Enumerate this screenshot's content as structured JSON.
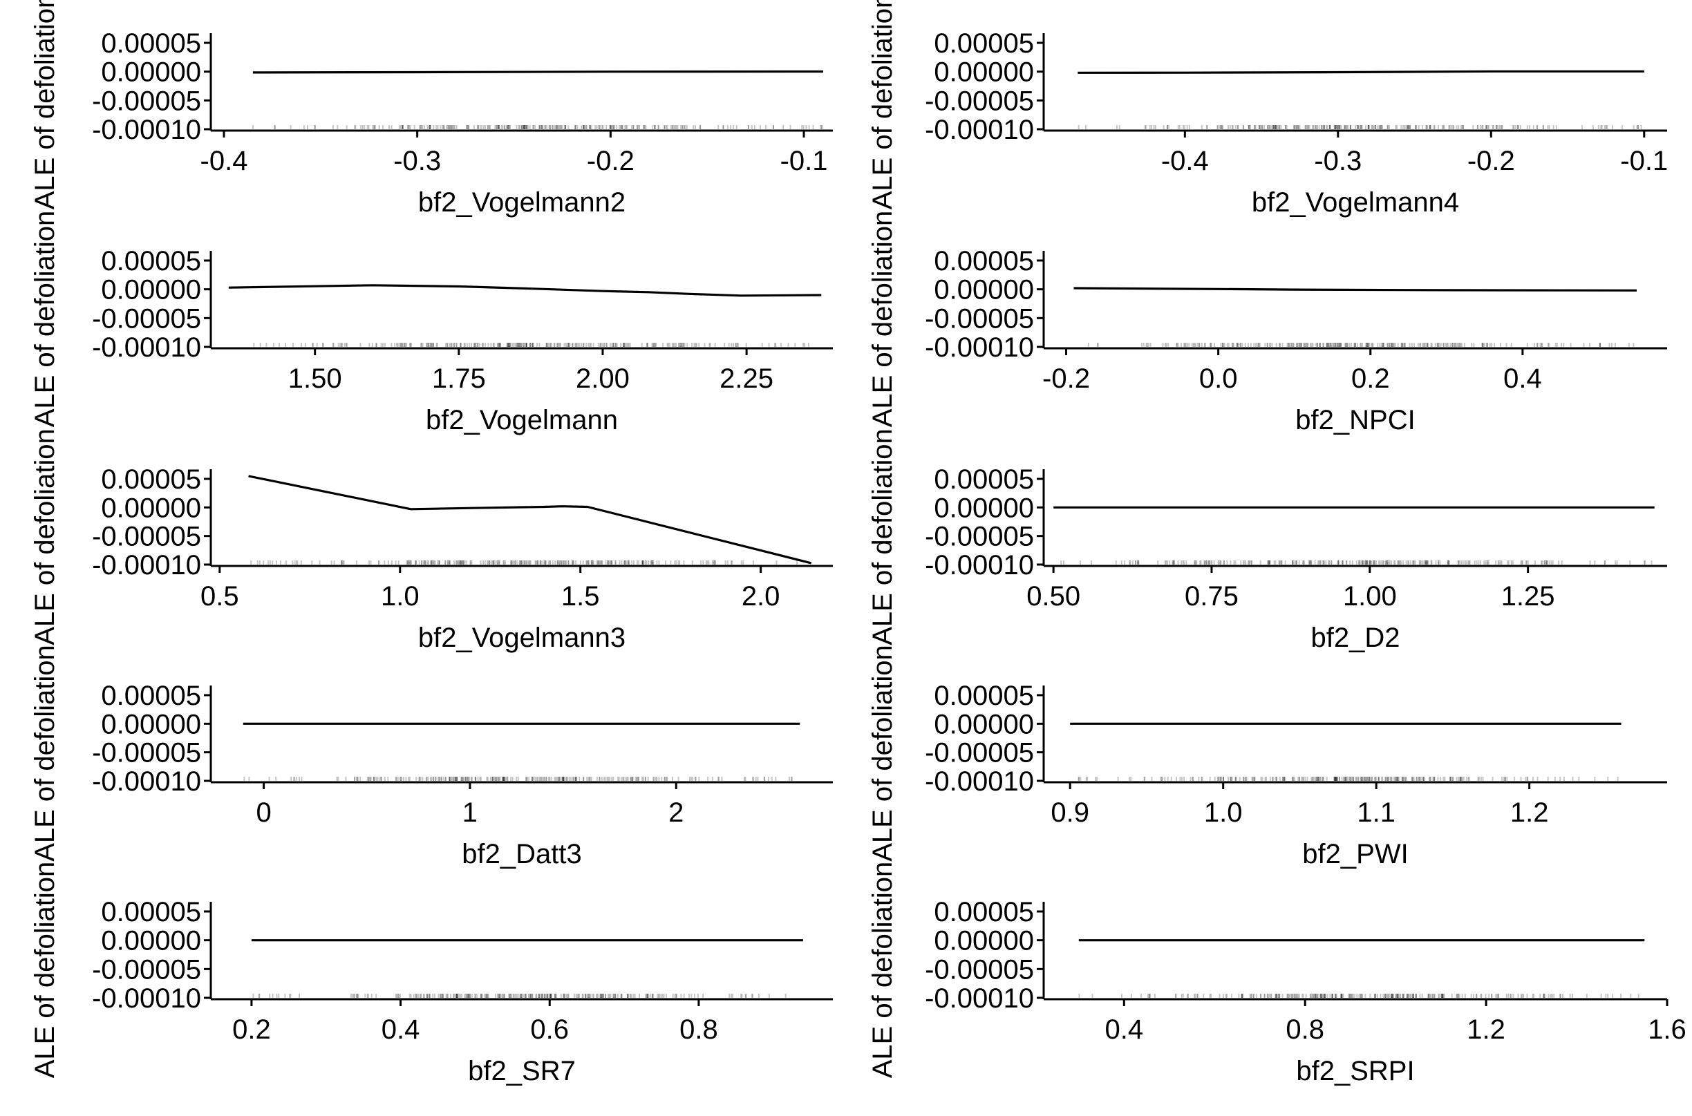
{
  "chart_data": [
    {
      "type": "line",
      "xlabel": "bf2_Vogelmann2",
      "ylabel": "ALE of defoliation",
      "xticks": [
        -0.4,
        -0.3,
        -0.2,
        -0.1
      ],
      "xtick_labels": [
        "-0.4",
        "-0.3",
        "-0.2",
        "-0.1"
      ],
      "xlim": [
        -0.405,
        -0.085
      ],
      "yticks": [
        5e-05,
        0.0,
        -5e-05,
        -0.0001
      ],
      "ytick_labels": [
        "0.00005",
        "0.00000",
        "-0.00005",
        "-0.00010"
      ],
      "ylim": [
        -0.0001,
        5e-05
      ],
      "rug_range": [
        -0.39,
        -0.09
      ],
      "series": [
        {
          "x": [
            -0.385,
            -0.3,
            -0.2,
            -0.09
          ],
          "y": [
            -1.5e-06,
            -1e-06,
            0.0,
            2e-07
          ]
        }
      ]
    },
    {
      "type": "line",
      "xlabel": "bf2_Vogelmann4",
      "ylabel": "ALE of defoliation",
      "xticks": [
        -0.4,
        -0.3,
        -0.2,
        -0.1
      ],
      "xtick_labels": [
        "-0.4",
        "-0.3",
        "-0.2",
        "-0.1"
      ],
      "xlim": [
        -0.49,
        -0.085
      ],
      "yticks": [
        5e-05,
        0.0,
        -5e-05,
        -0.0001
      ],
      "ytick_labels": [
        "0.00005",
        "0.00000",
        "-0.00005",
        "-0.00010"
      ],
      "ylim": [
        -0.0001,
        5e-05
      ],
      "rug_range": [
        -0.47,
        -0.1
      ],
      "series": [
        {
          "x": [
            -0.47,
            -0.4,
            -0.3,
            -0.2,
            -0.1
          ],
          "y": [
            -2e-06,
            -1.8e-06,
            -1e-06,
            5e-07,
            5e-07
          ]
        }
      ]
    },
    {
      "type": "line",
      "xlabel": "bf2_Vogelmann",
      "ylabel": "ALE of defoliation",
      "xticks": [
        1.5,
        1.75,
        2.0,
        2.25
      ],
      "xtick_labels": [
        "1.50",
        "1.75",
        "2.00",
        "2.25"
      ],
      "xlim": [
        1.325,
        2.4
      ],
      "yticks": [
        5e-05,
        0.0,
        -5e-05,
        -0.0001
      ],
      "ytick_labels": [
        "0.00005",
        "0.00000",
        "-0.00005",
        "-0.00010"
      ],
      "ylim": [
        -0.0001,
        5e-05
      ],
      "rug_range": [
        1.35,
        2.38
      ],
      "series": [
        {
          "x": [
            1.35,
            1.6,
            1.75,
            1.88,
            2.0,
            2.08,
            2.15,
            2.24,
            2.38
          ],
          "y": [
            3e-06,
            7e-06,
            5e-06,
            1e-06,
            -3e-06,
            -5e-06,
            -8e-06,
            -1.1e-05,
            -1e-05
          ]
        }
      ]
    },
    {
      "type": "line",
      "xlabel": "bf2_NPCI",
      "ylabel": "ALE of defoliation",
      "xticks": [
        -0.2,
        0.0,
        0.2,
        0.4
      ],
      "xtick_labels": [
        "-0.2",
        "0.0",
        "0.2",
        "0.4"
      ],
      "xlim": [
        -0.225,
        0.59
      ],
      "yticks": [
        5e-05,
        0.0,
        -5e-05,
        -0.0001
      ],
      "ytick_labels": [
        "0.00005",
        "0.00000",
        "-0.00005",
        "-0.00010"
      ],
      "ylim": [
        -0.0001,
        5e-05
      ],
      "rug_range": [
        -0.19,
        0.55
      ],
      "series": [
        {
          "x": [
            -0.19,
            0.0,
            0.1,
            0.3,
            0.55
          ],
          "y": [
            2e-06,
            5e-07,
            -5e-07,
            -1.5e-06,
            -2e-06
          ]
        }
      ]
    },
    {
      "type": "line",
      "xlabel": "bf2_Vogelmann3",
      "ylabel": "ALE of defoliation",
      "xticks": [
        0.5,
        1.0,
        1.5,
        2.0
      ],
      "xtick_labels": [
        "0.5",
        "1.0",
        "1.5",
        "2.0"
      ],
      "xlim": [
        0.485,
        2.2
      ],
      "yticks": [
        5e-05,
        0.0,
        -5e-05,
        -0.0001
      ],
      "ytick_labels": [
        "0.00005",
        "0.00000",
        "-0.00005",
        "-0.00010"
      ],
      "ylim": [
        -0.0001,
        5e-05
      ],
      "rug_range": [
        0.58,
        2.14
      ],
      "series": [
        {
          "x": [
            0.58,
            1.03,
            1.2,
            1.4,
            1.45,
            1.52,
            2.14
          ],
          "y": [
            5.5e-05,
            -3e-06,
            -1e-06,
            1e-06,
            2e-06,
            1e-06,
            -9.75e-05
          ]
        }
      ]
    },
    {
      "type": "line",
      "xlabel": "bf2_D2",
      "ylabel": "ALE of defoliation",
      "xticks": [
        0.5,
        0.75,
        1.0,
        1.25
      ],
      "xtick_labels": [
        "0.50",
        "0.75",
        "1.00",
        "1.25"
      ],
      "xlim": [
        0.49,
        1.47
      ],
      "yticks": [
        5e-05,
        0.0,
        -5e-05,
        -0.0001
      ],
      "ytick_labels": [
        "0.00005",
        "0.00000",
        "-0.00005",
        "-0.00010"
      ],
      "ylim": [
        -0.0001,
        5e-05
      ],
      "rug_range": [
        0.5,
        1.45
      ],
      "series": [
        {
          "x": [
            0.5,
            1.45
          ],
          "y": [
            0.0,
            0.0
          ]
        }
      ]
    },
    {
      "type": "line",
      "xlabel": "bf2_Datt3",
      "ylabel": "ALE of defoliation",
      "xticks": [
        0,
        1,
        2
      ],
      "xtick_labels": [
        "0",
        "1",
        "2"
      ],
      "xlim": [
        -0.24,
        2.76
      ],
      "yticks": [
        5e-05,
        0.0,
        -5e-05,
        -0.0001
      ],
      "ytick_labels": [
        "0.00005",
        "0.00000",
        "-0.00005",
        "-0.00010"
      ],
      "ylim": [
        -0.0001,
        5e-05
      ],
      "rug_range": [
        -0.1,
        2.6
      ],
      "series": [
        {
          "x": [
            -0.1,
            2.6
          ],
          "y": [
            0.0,
            0.0
          ]
        }
      ]
    },
    {
      "type": "line",
      "xlabel": "bf2_PWI",
      "ylabel": "ALE of defoliation",
      "xticks": [
        0.9,
        1.0,
        1.1,
        1.2
      ],
      "xtick_labels": [
        "0.9",
        "1.0",
        "1.1",
        "1.2"
      ],
      "xlim": [
        0.885,
        1.29
      ],
      "yticks": [
        5e-05,
        0.0,
        -5e-05,
        -0.0001
      ],
      "ytick_labels": [
        "0.00005",
        "0.00000",
        "-0.00005",
        "-0.00010"
      ],
      "ylim": [
        -0.0001,
        5e-05
      ],
      "rug_range": [
        0.9,
        1.26
      ],
      "series": [
        {
          "x": [
            0.9,
            1.26
          ],
          "y": [
            0.0,
            0.0
          ]
        }
      ]
    },
    {
      "type": "line",
      "xlabel": "bf2_SR7",
      "ylabel": "ALE of defoliation",
      "xticks": [
        0.2,
        0.4,
        0.6,
        0.8
      ],
      "xtick_labels": [
        "0.2",
        "0.4",
        "0.6",
        "0.8"
      ],
      "xlim": [
        0.15,
        0.98
      ],
      "yticks": [
        5e-05,
        0.0,
        -5e-05,
        -0.0001
      ],
      "ytick_labels": [
        "0.00005",
        "0.00000",
        "-0.00005",
        "-0.00010"
      ],
      "ylim": [
        -0.0001,
        5e-05
      ],
      "rug_range": [
        0.2,
        0.94
      ],
      "series": [
        {
          "x": [
            0.2,
            0.94
          ],
          "y": [
            0.0,
            0.0
          ]
        }
      ]
    },
    {
      "type": "line",
      "xlabel": "bf2_SRPI",
      "ylabel": "ALE of defoliation",
      "xticks": [
        0.4,
        0.8,
        1.2,
        1.6
      ],
      "xtick_labels": [
        "0.4",
        "0.8",
        "1.2",
        "1.6"
      ],
      "xlim": [
        0.23,
        1.6
      ],
      "yticks": [
        5e-05,
        0.0,
        -5e-05,
        -0.0001
      ],
      "ytick_labels": [
        "0.00005",
        "0.00000",
        "-0.00005",
        "-0.00010"
      ],
      "ylim": [
        -0.0001,
        5e-05
      ],
      "rug_range": [
        0.3,
        1.55
      ],
      "series": [
        {
          "x": [
            0.3,
            1.55
          ],
          "y": [
            0.0,
            0.0
          ]
        }
      ]
    }
  ]
}
